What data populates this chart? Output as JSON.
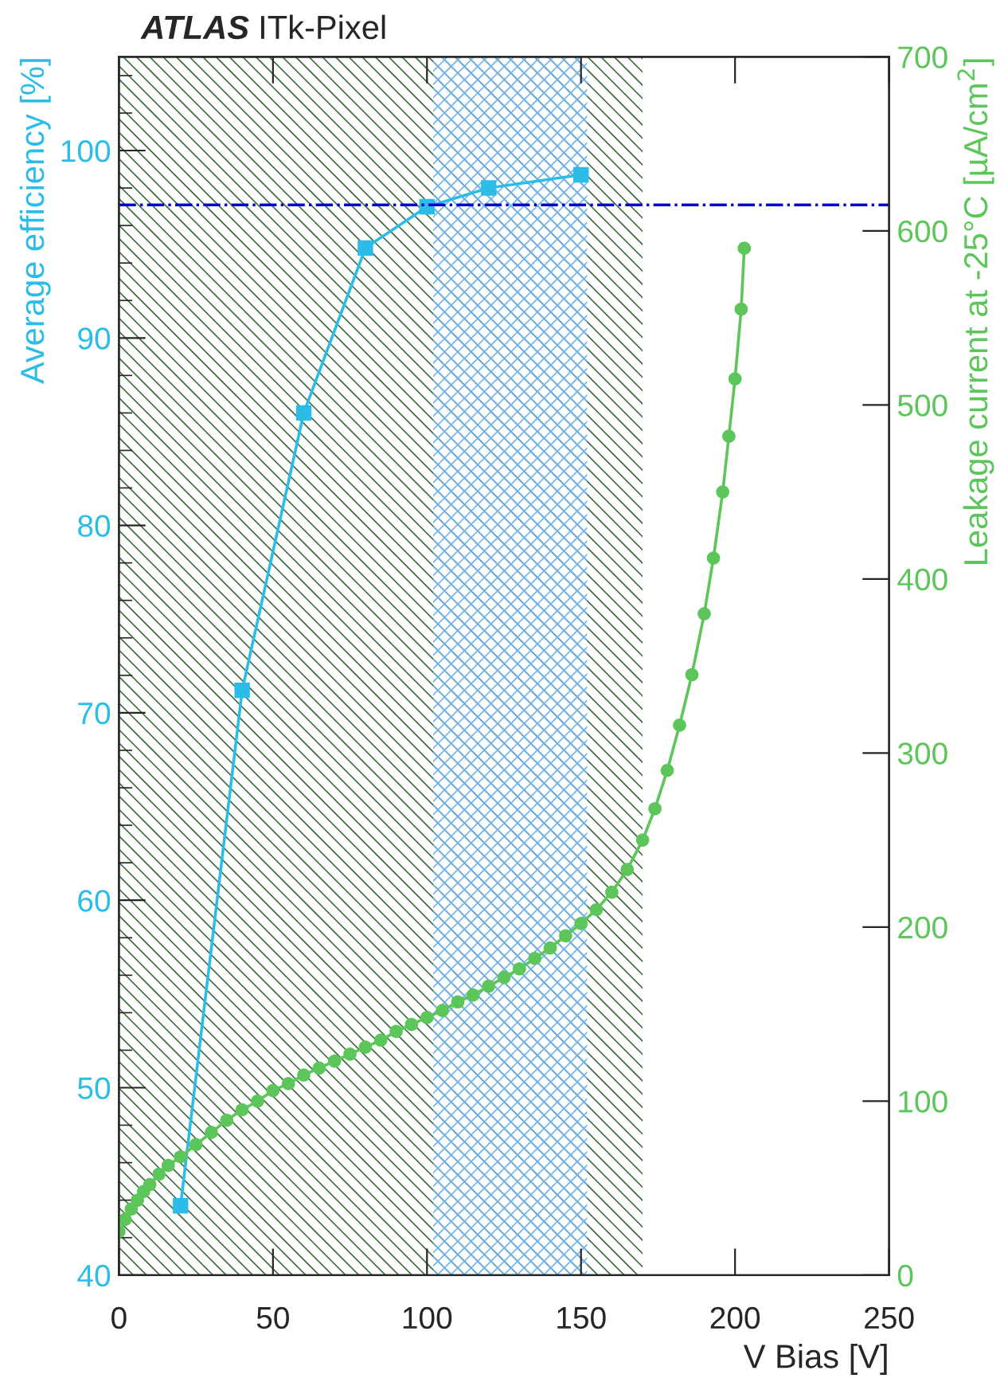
{
  "chart_data": {
    "type": "line",
    "title": "ATLAS ITk-Pixel",
    "xlabel": "V Bias [V]",
    "ylabel": "Average efficiency [%]",
    "y2label": "Leakage current at -25°C [µA/cm$^{2}$]",
    "xlim": [
      0,
      250
    ],
    "xticks": [
      0,
      50,
      100,
      150,
      200,
      250
    ],
    "ylim": [
      40,
      105
    ],
    "yticks": [
      40,
      50,
      60,
      70,
      80,
      90,
      100
    ],
    "y2lim": [
      0,
      700
    ],
    "y2ticks": [
      0,
      100,
      200,
      300,
      400,
      500,
      600,
      700
    ],
    "grid": false,
    "legend": false,
    "series": [
      {
        "color": "#2bbde8",
        "marker": "square",
        "x": [
          20,
          40,
          60,
          80,
          100,
          120,
          150
        ],
        "values": [
          43.7,
          71.2,
          86.0,
          94.8,
          97.0,
          98.0,
          98.7
        ]
      },
      {
        "color": "#5cc65a",
        "marker": "circle",
        "axis": "y2",
        "x": [
          0,
          2,
          4,
          6,
          8,
          10,
          13,
          16,
          20,
          25,
          30,
          35,
          40,
          45,
          50,
          55,
          60,
          65,
          70,
          75,
          80,
          85,
          90,
          95,
          100,
          105,
          110,
          115,
          120,
          125,
          130,
          135,
          140,
          145,
          150,
          155,
          160,
          165,
          170,
          174,
          178,
          182,
          186,
          190,
          193,
          196,
          198,
          200,
          202,
          203
        ],
        "values": [
          25,
          32,
          38,
          43,
          48,
          52,
          58,
          63,
          68,
          75,
          82,
          89,
          95,
          100,
          106,
          110,
          115,
          119,
          123,
          127,
          131,
          135,
          140,
          144,
          148,
          152,
          157,
          161,
          166,
          171,
          176,
          182,
          188,
          195,
          202,
          210,
          220,
          233,
          250,
          268,
          290,
          316,
          345,
          380,
          412,
          450,
          482,
          515,
          555,
          590
        ]
      }
    ],
    "ref_lines": [
      {
        "axis": "y",
        "value": 97.1,
        "color": "#0000cc",
        "line_style": "dashdot"
      }
    ],
    "bands": [
      {
        "axis": "x",
        "from": 0,
        "to": 170,
        "color": "#3d6b3d"
      },
      {
        "axis": "x",
        "from": 102,
        "to": 152,
        "color": "#6fb2f0"
      }
    ]
  }
}
